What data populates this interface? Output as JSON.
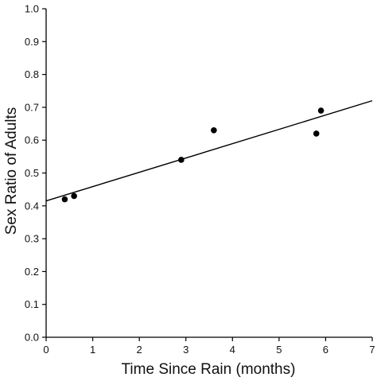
{
  "chart_data": {
    "type": "scatter",
    "title": "",
    "xlabel": "Time Since Rain (months)",
    "ylabel": "Sex Ratio of Adults",
    "xlim": [
      0,
      7
    ],
    "ylim": [
      0.0,
      1.0
    ],
    "x_ticks": [
      "0",
      "1",
      "2",
      "3",
      "4",
      "5",
      "6",
      "7"
    ],
    "y_ticks": [
      "0.0",
      "0.1",
      "0.2",
      "0.3",
      "0.4",
      "0.5",
      "0.6",
      "0.7",
      "0.8",
      "0.9",
      "1.0"
    ],
    "grid": false,
    "legend": "none",
    "points": [
      {
        "x": 0.4,
        "y": 0.42
      },
      {
        "x": 0.6,
        "y": 0.43
      },
      {
        "x": 2.9,
        "y": 0.54
      },
      {
        "x": 3.6,
        "y": 0.63
      },
      {
        "x": 5.8,
        "y": 0.62
      },
      {
        "x": 5.9,
        "y": 0.69
      }
    ],
    "trend_line": {
      "x": [
        0,
        7
      ],
      "y": [
        0.415,
        0.72
      ]
    },
    "colors": {
      "points": "#000000",
      "axes": "#000000",
      "line": "#000000"
    }
  }
}
